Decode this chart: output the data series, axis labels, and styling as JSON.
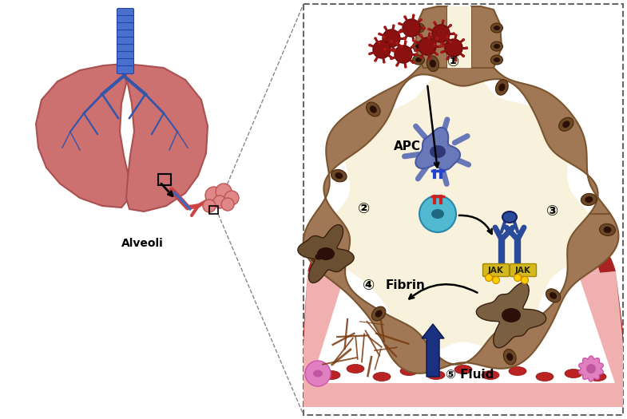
{
  "bg_color": "#ffffff",
  "labels": {
    "alveoli": "Alveoli",
    "apc": "APC",
    "fibrin": "Fibrin",
    "fluid": "Fluid",
    "step1": "①",
    "step2": "②",
    "step3": "③",
    "step4": "④",
    "step5": "⑤"
  },
  "virus_color": "#8B1A1A",
  "apc_cell_color": "#6B7FBF",
  "tcell_color": "#5BBCD6",
  "jak_color": "#2a4a9a",
  "jak_label_bg": "#d4b820",
  "fibrin_color": "#7a3a10",
  "fluid_arrow_color": "#1a3080",
  "macrophage_color": "#7a6040",
  "wall_color": "#a07855",
  "wall_edge": "#7a5530",
  "interior_color": "#f8f2dc",
  "neck_color": "#a07855"
}
